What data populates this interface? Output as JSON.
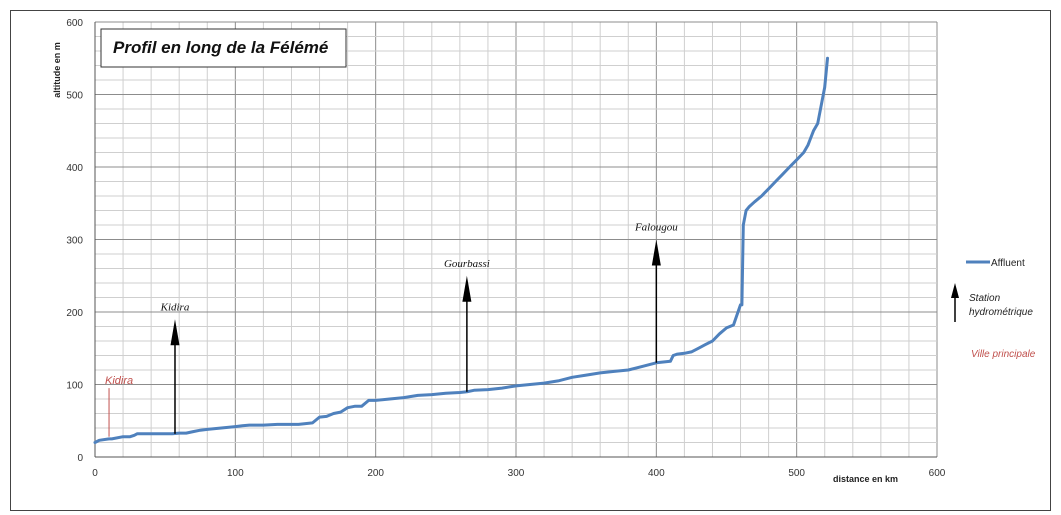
{
  "chart_data": {
    "type": "line",
    "title": "Profil en long de la Félémé",
    "xlabel": "distance en km",
    "ylabel": "altitude en m",
    "xlim": [
      0,
      600
    ],
    "ylim": [
      0,
      600
    ],
    "x_ticks": [
      "0",
      "100",
      "200",
      "300",
      "400",
      "500",
      "600"
    ],
    "y_ticks": [
      "0",
      "100",
      "200",
      "300",
      "400",
      "500",
      "600"
    ],
    "grid": true,
    "legend_position": "right",
    "series": [
      {
        "name": "Affluent",
        "color": "#4f81bd",
        "x": [
          0,
          3,
          10,
          12,
          20,
          25,
          28,
          30,
          40,
          45,
          50,
          55,
          60,
          65,
          70,
          75,
          80,
          90,
          100,
          105,
          110,
          120,
          130,
          140,
          145,
          150,
          155,
          160,
          165,
          170,
          175,
          180,
          185,
          190,
          195,
          200,
          210,
          220,
          230,
          240,
          250,
          260,
          265,
          270,
          280,
          290,
          300,
          310,
          320,
          330,
          340,
          350,
          360,
          370,
          380,
          390,
          400,
          410,
          412,
          415,
          420,
          425,
          430,
          435,
          440,
          445,
          450,
          455,
          460,
          461,
          462,
          464,
          466,
          470,
          475,
          480,
          485,
          490,
          495,
          500,
          505,
          508,
          510,
          512,
          515,
          518,
          520,
          522
        ],
        "y": [
          20,
          23,
          25,
          25,
          28,
          28,
          30,
          32,
          32,
          32,
          32,
          32,
          33,
          33,
          35,
          37,
          38,
          40,
          42,
          43,
          44,
          44,
          45,
          45,
          45,
          46,
          47,
          55,
          56,
          60,
          62,
          68,
          70,
          70,
          78,
          78,
          80,
          82,
          85,
          86,
          88,
          89,
          90,
          92,
          93,
          95,
          98,
          100,
          102,
          105,
          110,
          113,
          116,
          118,
          120,
          125,
          130,
          132,
          140,
          142,
          143,
          145,
          150,
          155,
          160,
          170,
          178,
          182,
          210,
          210,
          320,
          340,
          345,
          352,
          360,
          370,
          380,
          390,
          400,
          410,
          420,
          430,
          440,
          450,
          460,
          490,
          510,
          550
        ]
      }
    ],
    "stations": [
      {
        "name": "Kidira",
        "x": 57,
        "arrow_bottom": 32,
        "arrow_top": 190
      },
      {
        "name": "Gourbassi",
        "x": 265,
        "arrow_bottom": 90,
        "arrow_top": 250
      },
      {
        "name": "Falougou",
        "x": 400,
        "arrow_bottom": 130,
        "arrow_top": 300
      }
    ],
    "cities": [
      {
        "name": "Kidira",
        "x": 10,
        "line_bottom": 28,
        "line_top": 95
      }
    ],
    "legend": {
      "series_label": "Affluent",
      "station_label_line1": "Station",
      "station_label_line2": "hydrométrique",
      "city_label": "Ville principale"
    }
  }
}
